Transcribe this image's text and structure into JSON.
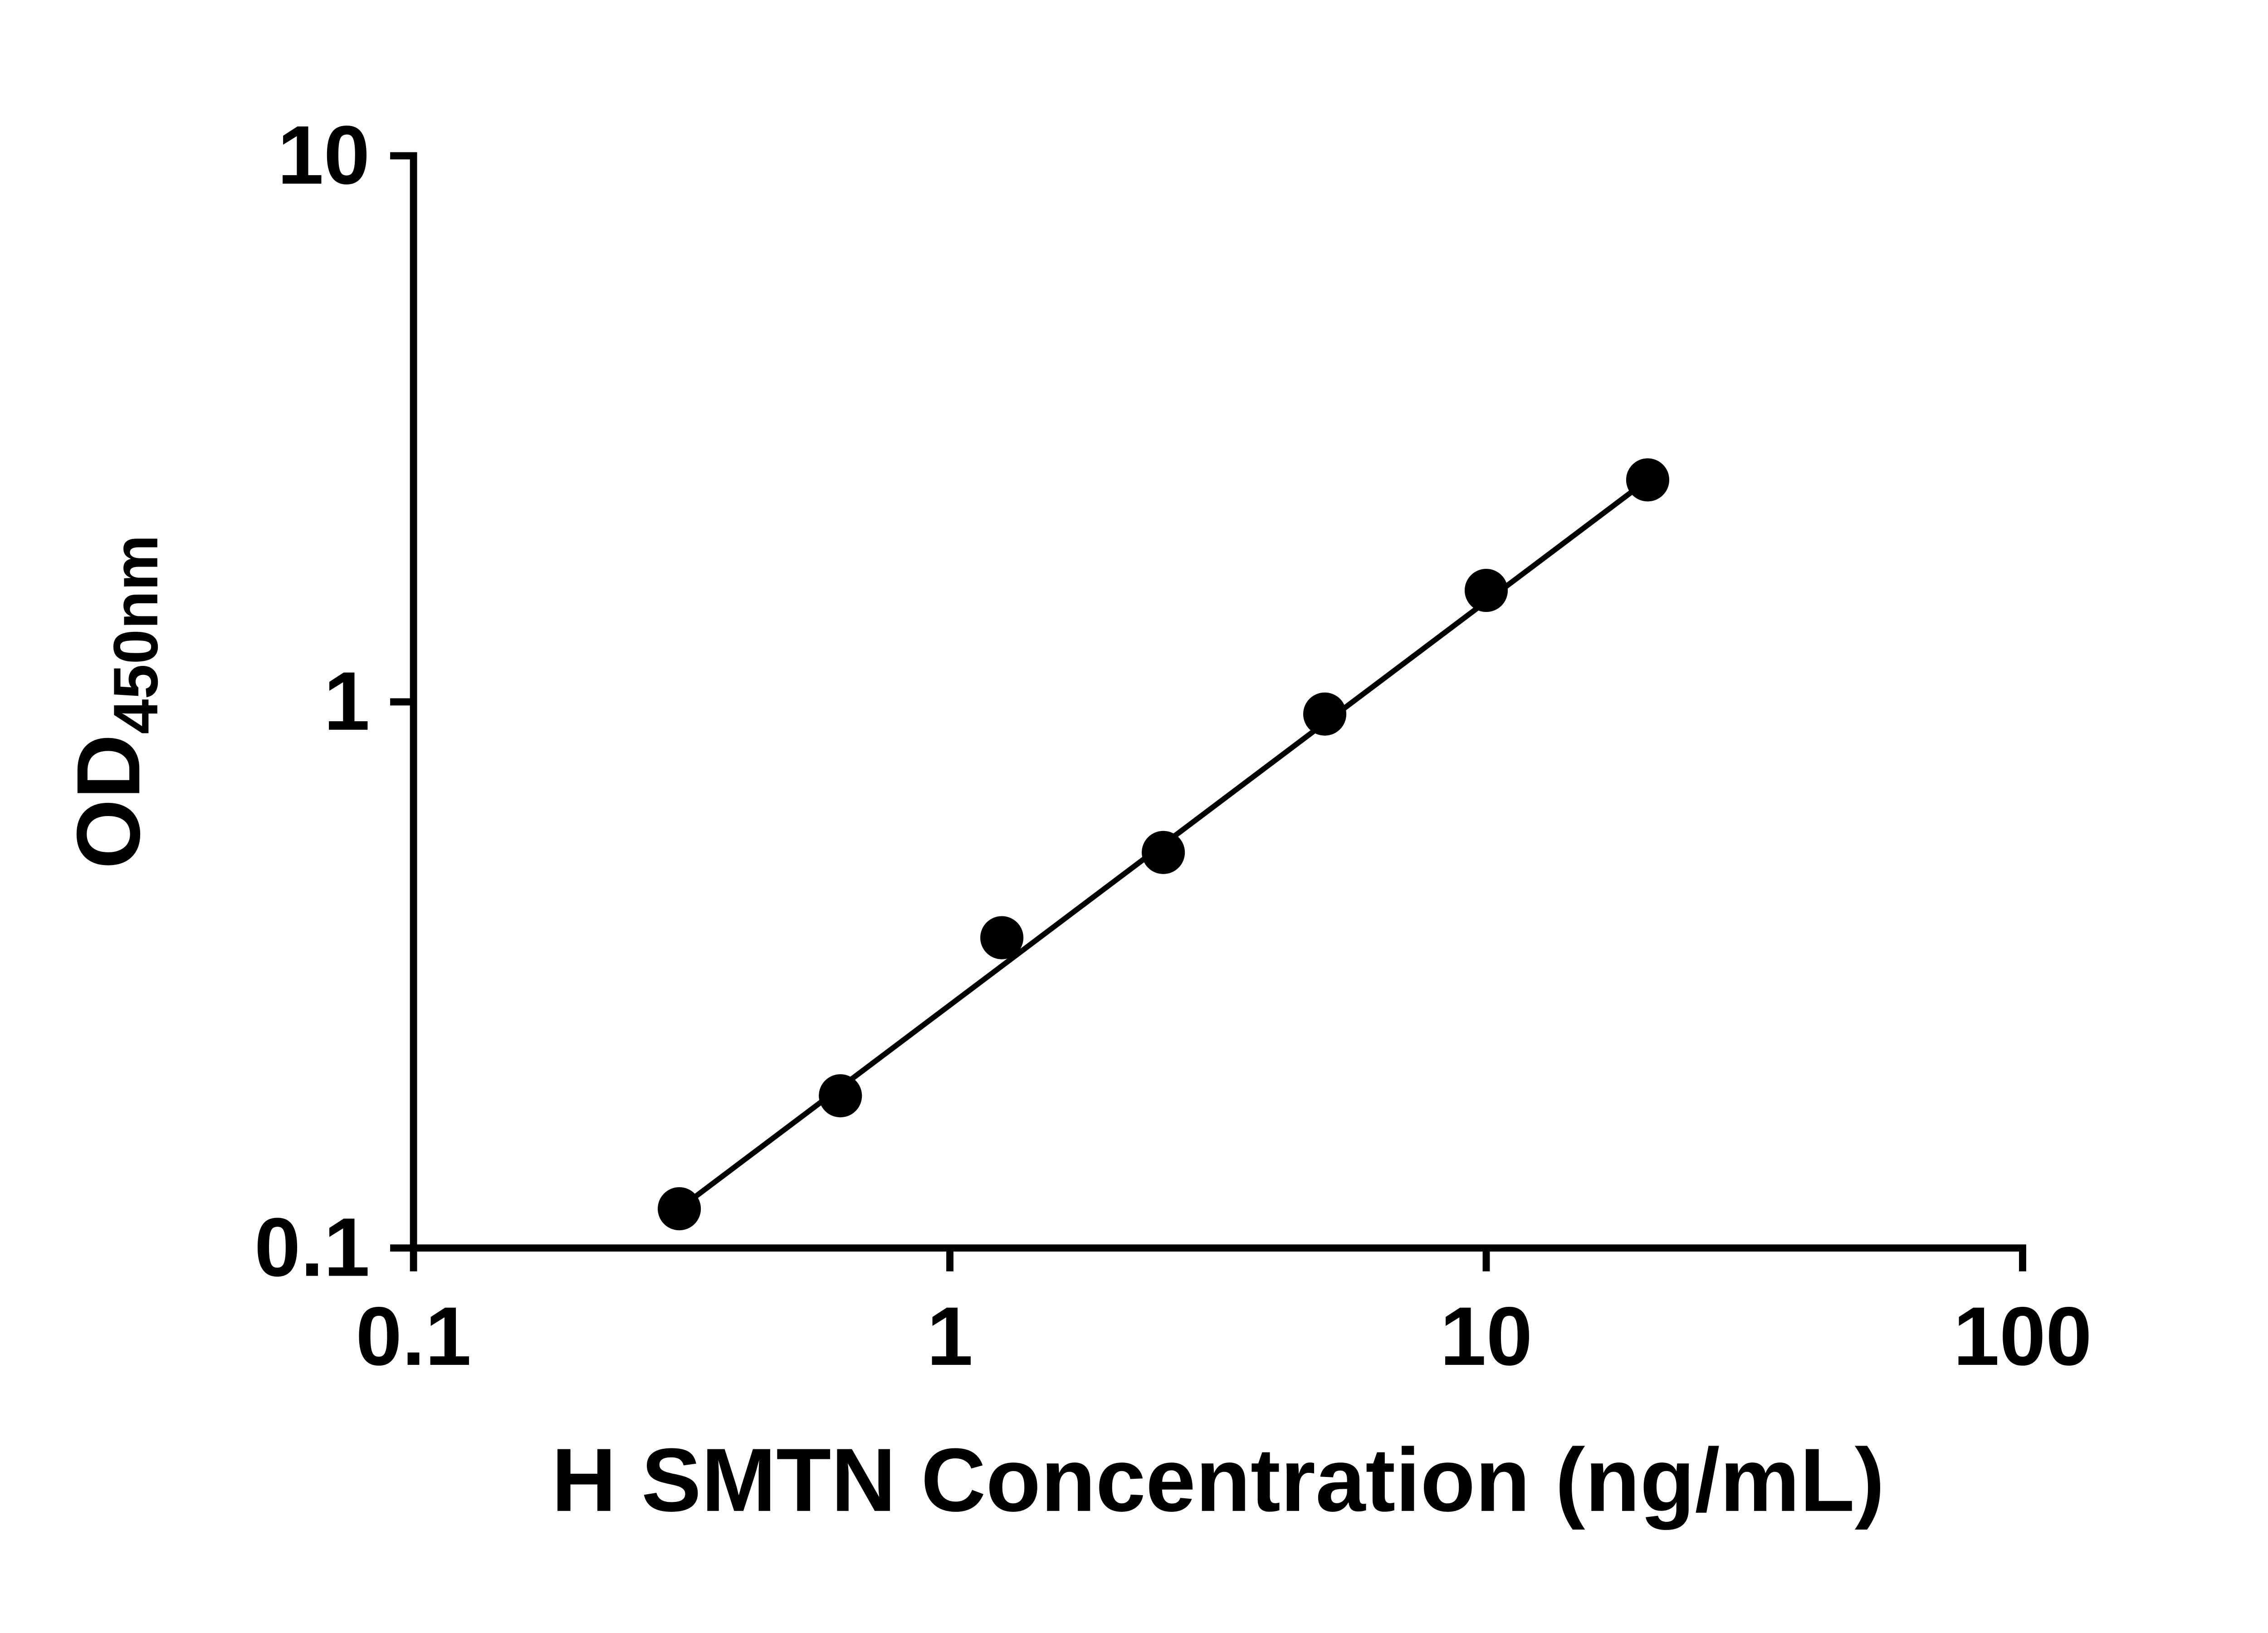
{
  "chart_data": {
    "type": "scatter",
    "title": "",
    "xlabel": "H SMTN Concentration (ng/mL)",
    "ylabel": {
      "main": "OD",
      "sub": "450nm"
    },
    "x_scale": "log",
    "y_scale": "log",
    "xlim": [
      0.1,
      100
    ],
    "ylim": [
      0.1,
      10
    ],
    "x_ticks": [
      0.1,
      1,
      10,
      100
    ],
    "x_tick_labels": [
      "0.1",
      "1",
      "10",
      "100"
    ],
    "y_ticks": [
      0.1,
      1,
      10
    ],
    "y_tick_labels": [
      "0.1",
      "1",
      "10"
    ],
    "grid": false,
    "legend": null,
    "marker": {
      "shape": "circle",
      "color": "#000000",
      "radius_px": 48
    },
    "line_color": "#000000",
    "axis_color": "#000000",
    "background": "#ffffff",
    "points": [
      {
        "x": 0.313,
        "y": 0.118
      },
      {
        "x": 0.625,
        "y": 0.19
      },
      {
        "x": 1.25,
        "y": 0.37
      },
      {
        "x": 2.5,
        "y": 0.53
      },
      {
        "x": 5,
        "y": 0.95
      },
      {
        "x": 10,
        "y": 1.6
      },
      {
        "x": 20,
        "y": 2.55
      }
    ],
    "trendline": {
      "style": "straight-in-loglog",
      "from": {
        "x": 0.313,
        "y": 0.118
      },
      "to": {
        "x": 20,
        "y": 2.55
      }
    }
  }
}
